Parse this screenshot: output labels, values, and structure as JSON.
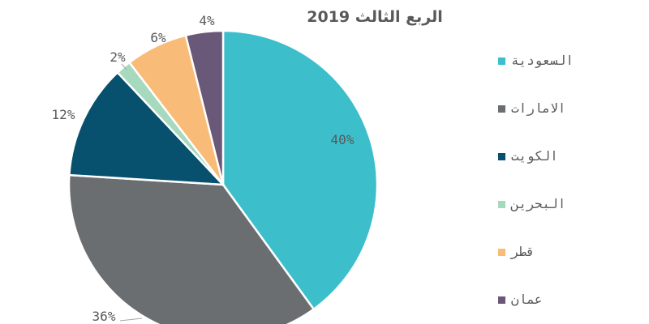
{
  "chart_data": {
    "type": "pie",
    "title": "الربع الثالث 2019",
    "legend_position": "right",
    "slices": [
      {
        "label": "السعودية",
        "value": 40,
        "value_label": "40%",
        "color": "#3cbfcb"
      },
      {
        "label": "الامارات",
        "value": 36,
        "value_label": "36%",
        "color": "#6b6e70"
      },
      {
        "label": "الكويت",
        "value": 12,
        "value_label": "12%",
        "color": "#07506e"
      },
      {
        "label": "البحرين",
        "value": 1.6,
        "value_label": "2%",
        "color": "#a6d9bd"
      },
      {
        "label": "قطر",
        "value": 6.5,
        "value_label": "6%",
        "color": "#f9bc78"
      },
      {
        "label": "عمان",
        "value": 3.9,
        "value_label": "4%",
        "color": "#6a5878"
      }
    ]
  }
}
